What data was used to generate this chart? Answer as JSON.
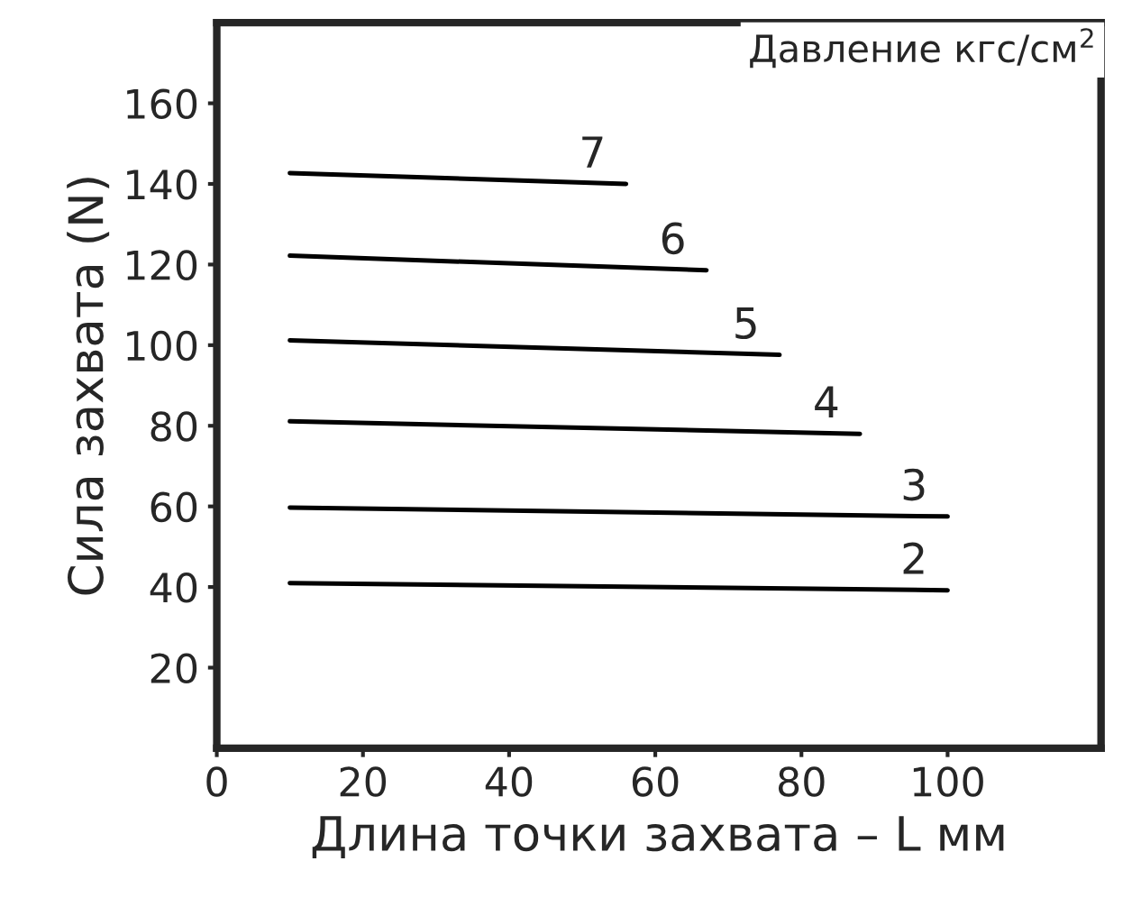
{
  "chart_data": {
    "type": "line",
    "xlabel": "Длина точки захвата – L мм",
    "ylabel": "Сила захвата (N)",
    "annotations": [
      "Давление кгс/см$^{2}$"
    ],
    "series": [
      {
        "name": "7",
        "color": "#000000",
        "x": [
          10,
          56
        ],
        "values": [
          142.7,
          140
        ]
      },
      {
        "name": "6",
        "color": "#000000",
        "x": [
          10,
          67
        ],
        "values": [
          122.2,
          118.6
        ]
      },
      {
        "name": "5",
        "color": "#000000",
        "x": [
          10,
          77
        ],
        "values": [
          101.2,
          97.6
        ]
      },
      {
        "name": "4",
        "color": "#000000",
        "x": [
          10,
          88
        ],
        "values": [
          81.1,
          78
        ]
      },
      {
        "name": "3",
        "color": "#000000",
        "x": [
          10,
          100
        ],
        "values": [
          59.7,
          57.5
        ]
      },
      {
        "name": "2",
        "color": "#000000",
        "x": [
          10,
          100
        ],
        "values": [
          41,
          39.2
        ]
      }
    ],
    "xlim": [
      0,
      121
    ],
    "ylim": [
      0,
      180
    ],
    "xticks": [
      0,
      20,
      40,
      60,
      80,
      100
    ],
    "yticks": [
      20,
      40,
      60,
      80,
      100,
      120,
      140,
      160
    ],
    "grid": false,
    "legend": false,
    "marker": "none",
    "line_style": "solid"
  }
}
